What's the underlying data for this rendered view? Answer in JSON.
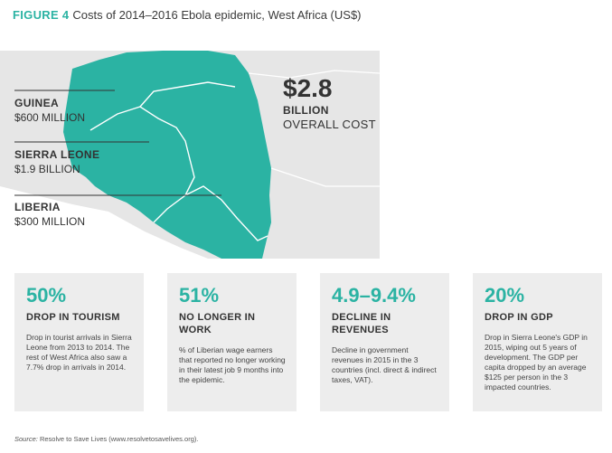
{
  "figure": {
    "label": "FIGURE 4",
    "title": "Costs of 2014–2016 Ebola epidemic, West Africa (US$)"
  },
  "map": {
    "colors": {
      "land": "#e6e6e6",
      "affected": "#2bb3a3",
      "border": "#ffffff",
      "leader": "#333333"
    },
    "countries": [
      {
        "name": "GUINEA",
        "cost": "$600 MILLION"
      },
      {
        "name": "SIERRA LEONE",
        "cost": "$1.9 BILLION"
      },
      {
        "name": "LIBERIA",
        "cost": "$300 MILLION"
      }
    ],
    "overall": {
      "amount": "$2.8",
      "unit": "BILLION",
      "label": "OVERALL COST"
    }
  },
  "stats": [
    {
      "value": "50%",
      "heading": "DROP IN TOURISM",
      "description": "Drop in tourist arrivals in Sierra Leone from 2013 to 2014. The rest of West Africa also saw a 7.7% drop in arrivals in 2014."
    },
    {
      "value": "51%",
      "heading": "NO LONGER IN WORK",
      "description": "% of Liberian wage earners that reported no longer working in their latest job 9 months into the epidemic."
    },
    {
      "value": "4.9–9.4%",
      "heading": "DECLINE IN REVENUES",
      "description": "Decline in government revenues in 2015 in the 3 countries (incl. direct & indirect taxes, VAT)."
    },
    {
      "value": "20%",
      "heading": "DROP IN GDP",
      "description": "Drop in Sierra Leone's GDP in 2015, wiping out 5 years of development. The GDP per capita dropped by an average $125 per person in the 3 impacted countries."
    }
  ],
  "source": {
    "label": "Source:",
    "text": "Resolve to Save Lives (www.resolvetosavelives.org)."
  }
}
